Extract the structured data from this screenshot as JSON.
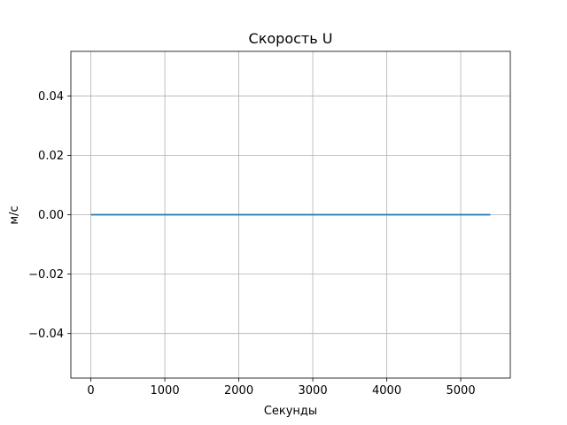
{
  "chart_data": {
    "type": "line",
    "title": "Скорость U",
    "xlabel": "Секунды",
    "ylabel": "м/с",
    "xlim": [
      -270,
      5670
    ],
    "ylim": [
      -0.055,
      0.055
    ],
    "xticks": [
      0,
      1000,
      2000,
      3000,
      4000,
      5000
    ],
    "xtick_labels": [
      "0",
      "1000",
      "2000",
      "3000",
      "4000",
      "5000"
    ],
    "yticks": [
      -0.04,
      -0.02,
      0.0,
      0.02,
      0.04
    ],
    "ytick_labels": [
      "−0.04",
      "−0.02",
      "0.00",
      "0.02",
      "0.04"
    ],
    "grid": true,
    "series": [
      {
        "x": [
          0,
          5400
        ],
        "y": [
          0,
          0
        ],
        "color": "#1f77b4"
      }
    ]
  }
}
